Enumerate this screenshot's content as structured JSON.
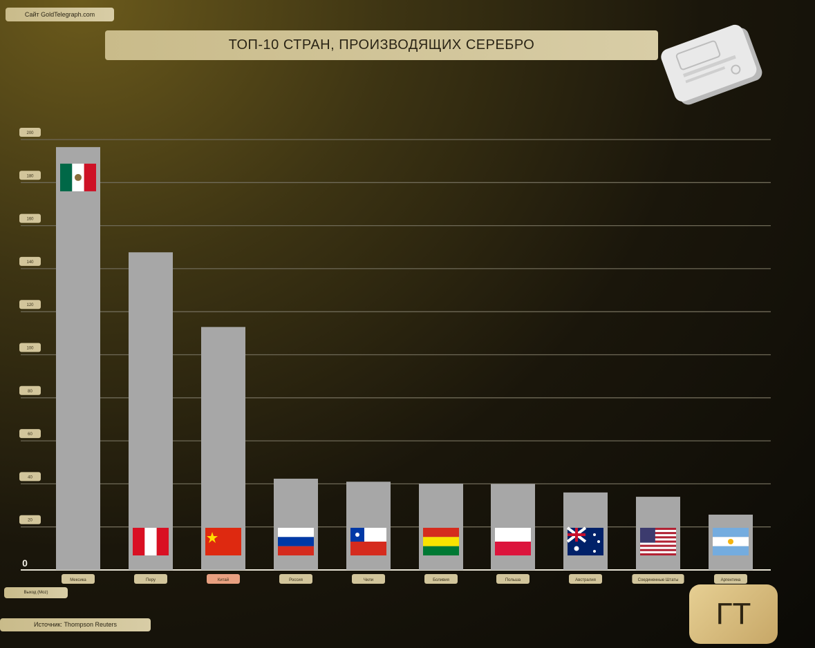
{
  "header": {
    "site": "Сайт GoldTelegraph.com",
    "title": "ТОП-10 СТРАН, ПРОИЗВОДЯЩИХ СЕРЕБРО"
  },
  "footer": {
    "source": "Источник: Thompson Reuters",
    "logo": "ГТ"
  },
  "icons": [
    "silver-bar-icon",
    "flag-mexico-icon",
    "flag-peru-icon",
    "flag-china-icon",
    "flag-russia-icon",
    "flag-chile-icon",
    "flag-bolivia-icon",
    "flag-poland-icon",
    "flag-australia-icon",
    "flag-usa-icon",
    "flag-argentina-icon"
  ],
  "chart_data": {
    "type": "bar",
    "title": "ТОП-10 СТРАН, ПРОИЗВОДЯЩИХ СЕРЕБРО",
    "ylabel": "Выход (Моz)",
    "xlabel": "",
    "ylim": [
      0,
      200
    ],
    "grid": true,
    "y_ticks": [
      {
        "value": 0,
        "label": "0"
      },
      {
        "value": 20,
        "label": "20"
      },
      {
        "value": 40,
        "label": "40"
      },
      {
        "value": 60,
        "label": "60"
      },
      {
        "value": 80,
        "label": "80"
      },
      {
        "value": 100,
        "label": "100"
      },
      {
        "value": 120,
        "label": "120"
      },
      {
        "value": 140,
        "label": "140"
      },
      {
        "value": 160,
        "label": "160"
      },
      {
        "value": 180,
        "label": "180"
      },
      {
        "value": 200,
        "label": "200"
      }
    ],
    "categories": [
      "Мексика",
      "Перу",
      "Китай",
      "Россия",
      "Чили",
      "Боливия",
      "Польша",
      "Австралия",
      "Соединенные Штаты",
      "Аргентина"
    ],
    "values": [
      196.5,
      147.6,
      112.9,
      42.4,
      41.0,
      40.1,
      40.0,
      36.0,
      34.0,
      25.7
    ],
    "bar_color": "#a7a7a7",
    "highlight_label_color": "#e8a080"
  }
}
